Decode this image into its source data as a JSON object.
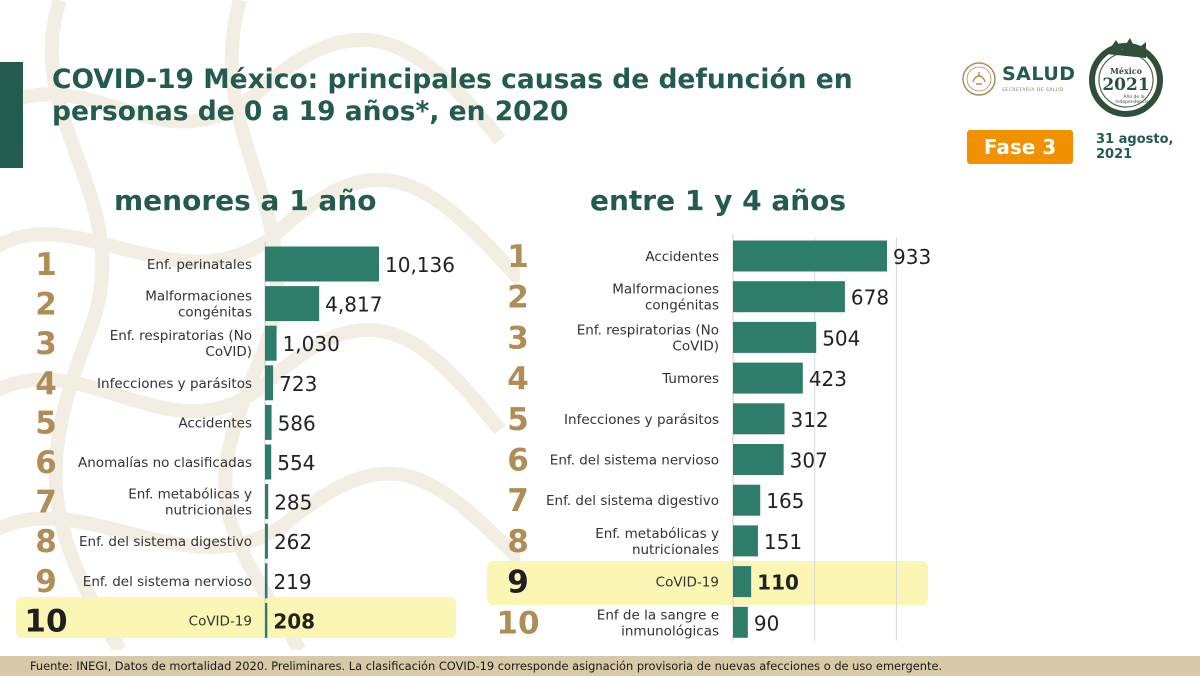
{
  "header": {
    "title_line1": "COVID-19 México: principales causas de defunción en",
    "title_line2": "personas de 0 a 19 años*, en 2020",
    "badge": "Fase 3",
    "date_line1": "31 agosto,",
    "date_line2": "2021",
    "logo_salud_text": "SALUD",
    "logo_salud_sub": "SECRETARÍA DE SALUD",
    "logo_2021_text": "2021",
    "logo_2021_country": "México",
    "logo_2021_line1": "Año de la",
    "logo_2021_line2": "Independencia"
  },
  "colors": {
    "primary": "#235b4e",
    "bar": "#2e7d6b",
    "rank": "#b08d57",
    "badge": "#f29100",
    "highlight": "#fbf6b4",
    "footer": "#d8c9a8"
  },
  "footer": {
    "source": "Fuente: INEGI, Datos de mortalidad 2020. Preliminares. La clasificación COVID-19 corresponde asignación provisoria de nuevas afecciones o de uso emergente."
  },
  "chart_data": [
    {
      "type": "bar",
      "orientation": "horizontal",
      "title": "menores a 1 año",
      "ranks": [
        "1",
        "2",
        "3",
        "4",
        "5",
        "6",
        "7",
        "8",
        "9",
        "10"
      ],
      "categories": [
        [
          "Enf. perinatales"
        ],
        [
          "Malformaciones",
          "congénitas"
        ],
        [
          "Enf. respiratorias (No",
          "CoVID)"
        ],
        [
          "Infecciones y parásitos"
        ],
        [
          "Accidentes"
        ],
        [
          "Anomalías no clasificadas"
        ],
        [
          "Enf. metabólicas y",
          "nutricionales"
        ],
        [
          "Enf. del sistema digestivo"
        ],
        [
          "Enf. del sistema nervioso"
        ],
        [
          "CoVID-19"
        ]
      ],
      "values": [
        10136,
        4817,
        1030,
        723,
        586,
        554,
        285,
        262,
        219,
        208
      ],
      "value_labels": [
        "10,136",
        "4,817",
        "1,030",
        "723",
        "586",
        "554",
        "285",
        "262",
        "219",
        "208"
      ],
      "highlight_index": 9,
      "xlim": [
        0,
        10136
      ],
      "grid": false
    },
    {
      "type": "bar",
      "orientation": "horizontal",
      "title": "entre 1 y 4 años",
      "ranks": [
        "1",
        "2",
        "3",
        "4",
        "5",
        "6",
        "7",
        "8",
        "9",
        "10"
      ],
      "categories": [
        [
          "Accidentes"
        ],
        [
          "Malformaciones",
          "congénitas"
        ],
        [
          "Enf. respiratorias (No",
          "CoVID)"
        ],
        [
          "Tumores"
        ],
        [
          "Infecciones y parásitos"
        ],
        [
          "Enf. del sistema nervioso"
        ],
        [
          "Enf. del sistema digestivo"
        ],
        [
          "Enf. metabólicas y",
          "nutricionales"
        ],
        [
          "CoVID-19"
        ],
        [
          "Enf de la sangre e",
          "inmunológicas"
        ]
      ],
      "values": [
        933,
        678,
        504,
        423,
        312,
        307,
        165,
        151,
        110,
        90
      ],
      "value_labels": [
        "933",
        "678",
        "504",
        "423",
        "312",
        "307",
        "165",
        "151",
        "110",
        "90"
      ],
      "highlight_index": 8,
      "xlim": [
        0,
        933
      ],
      "grid": true,
      "grid_values": [
        500,
        1000
      ]
    }
  ]
}
